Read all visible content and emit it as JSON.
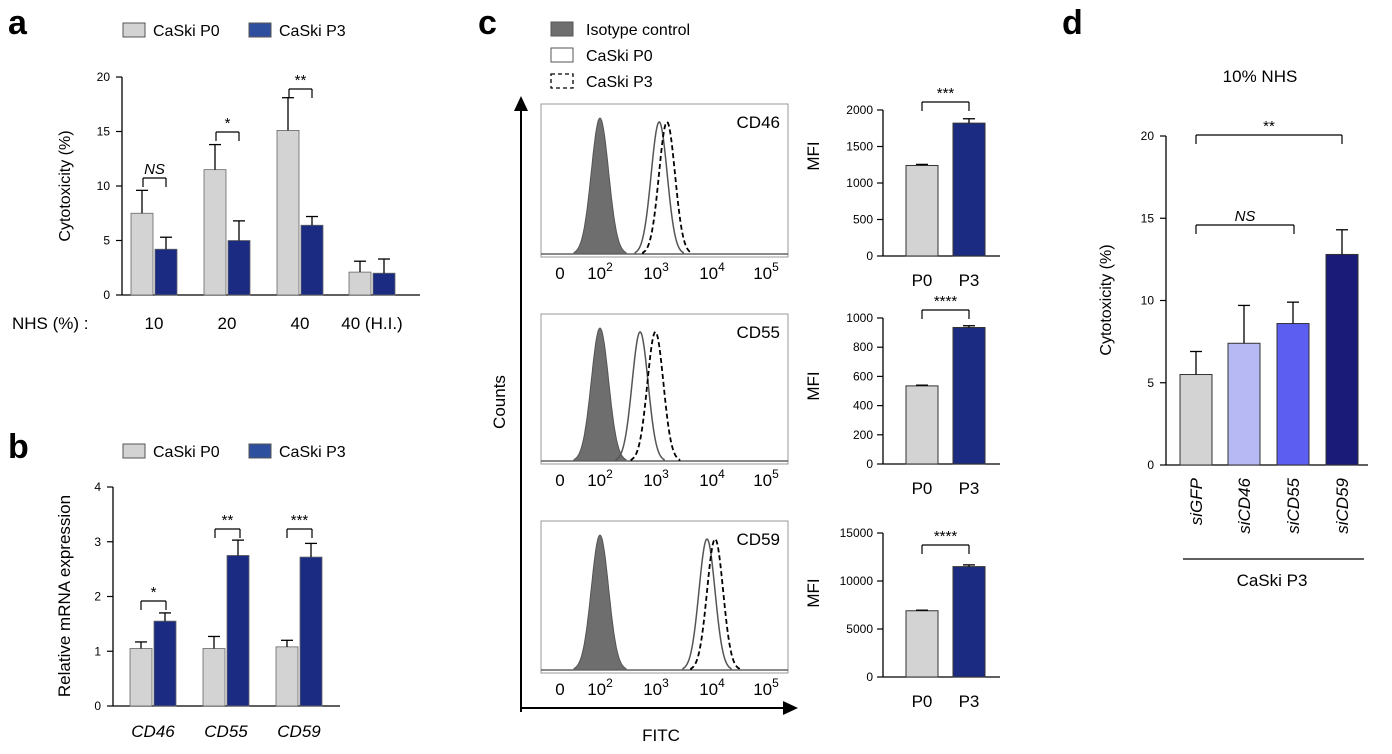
{
  "panels": {
    "a": "a",
    "b": "b",
    "c": "c",
    "d": "d"
  },
  "colors": {
    "p0": "#d3d3d3",
    "p3": "#1c2b82",
    "p3_legend": "#2e4f9e",
    "isotype": "#6e6e6e",
    "siGFP": "#d3d3d3",
    "siCD46": "#b7b9f4",
    "siCD55": "#5b5ef0",
    "siCD59": "#1a1a78"
  },
  "chart_data": [
    {
      "id": "a",
      "type": "bar",
      "legend": [
        "CaSki P0",
        "CaSki P3"
      ],
      "xprefix": "NHS (%) :",
      "categories": [
        "10",
        "20",
        "40",
        "40 (H.I.)"
      ],
      "series": [
        {
          "name": "CaSki P0",
          "values": [
            7.5,
            11.5,
            15.1,
            2.1
          ],
          "errors": [
            2.1,
            2.3,
            3.0,
            1.0
          ]
        },
        {
          "name": "CaSki P3",
          "values": [
            4.2,
            5.0,
            6.4,
            2.0
          ],
          "errors": [
            1.1,
            1.8,
            0.8,
            1.3
          ]
        }
      ],
      "ylabel": "Cytotoxicity (%)",
      "ylim": [
        0,
        20
      ],
      "yticks": [
        "0",
        "5",
        "10",
        "15",
        "20"
      ],
      "significance": [
        "NS",
        "*",
        "**"
      ]
    },
    {
      "id": "b",
      "type": "bar",
      "legend": [
        "CaSki P0",
        "CaSki P3"
      ],
      "categories": [
        "CD46",
        "CD55",
        "CD59"
      ],
      "series": [
        {
          "name": "CaSki P0",
          "values": [
            1.05,
            1.05,
            1.08
          ],
          "errors": [
            0.12,
            0.22,
            0.12
          ]
        },
        {
          "name": "CaSki P3",
          "values": [
            1.55,
            2.75,
            2.72
          ],
          "errors": [
            0.15,
            0.28,
            0.25
          ]
        }
      ],
      "ylabel": "Relative mRNA expression",
      "ylim": [
        0,
        4
      ],
      "yticks": [
        "0",
        "1",
        "2",
        "3",
        "4"
      ],
      "significance": [
        "*",
        "**",
        "***"
      ]
    },
    {
      "id": "c",
      "type": "area",
      "legend": [
        "Isotype control",
        "CaSki P0",
        "CaSki P3"
      ],
      "xlabel": "FITC",
      "ylabel": "Counts",
      "xticks": [
        "0",
        "10",
        "10",
        "10",
        "10"
      ],
      "xtick_exponents": [
        "",
        "2",
        "3",
        "4",
        "5"
      ],
      "histograms": [
        {
          "marker": "CD46",
          "isotype_peak": 80,
          "p0_peak": 1050,
          "p3_peak": 1450
        },
        {
          "marker": "CD55",
          "isotype_peak": 80,
          "p0_peak": 480,
          "p3_peak": 900
        },
        {
          "marker": "CD59",
          "isotype_peak": 80,
          "p0_peak": 7500,
          "p3_peak": 10500
        }
      ]
    },
    {
      "id": "c-mfi",
      "type": "bar",
      "ylabel": "MFI",
      "charts": [
        {
          "categories": [
            "P0",
            "P3"
          ],
          "values": [
            1240,
            1820
          ],
          "errors": [
            15,
            60
          ],
          "ylim": [
            0,
            2000
          ],
          "yticks": [
            "0",
            "500",
            "1000",
            "1500",
            "2000"
          ],
          "significance": "***"
        },
        {
          "categories": [
            "P0",
            "P3"
          ],
          "values": [
            535,
            935
          ],
          "errors": [
            5,
            12
          ],
          "ylim": [
            0,
            1000
          ],
          "yticks": [
            "0",
            "200",
            "400",
            "600",
            "800",
            "1000"
          ],
          "significance": "****"
        },
        {
          "categories": [
            "P0",
            "P3"
          ],
          "values": [
            6900,
            11500
          ],
          "errors": [
            60,
            180
          ],
          "ylim": [
            0,
            15000
          ],
          "yticks": [
            "0",
            "5000",
            "10000",
            "15000"
          ],
          "significance": "****"
        }
      ]
    },
    {
      "id": "d",
      "type": "bar",
      "title": "10% NHS",
      "categories": [
        "siGFP",
        "siCD46",
        "siCD55",
        "siCD59"
      ],
      "values": [
        5.5,
        7.4,
        8.6,
        12.8
      ],
      "errors": [
        1.4,
        2.3,
        1.3,
        1.5
      ],
      "ylabel": "Cytotoxicity (%)",
      "ylim": [
        0,
        20
      ],
      "yticks": [
        "0",
        "5",
        "10",
        "15",
        "20"
      ],
      "xgroup_label": "CaSki P3",
      "significance": [
        "NS",
        "**"
      ]
    }
  ]
}
